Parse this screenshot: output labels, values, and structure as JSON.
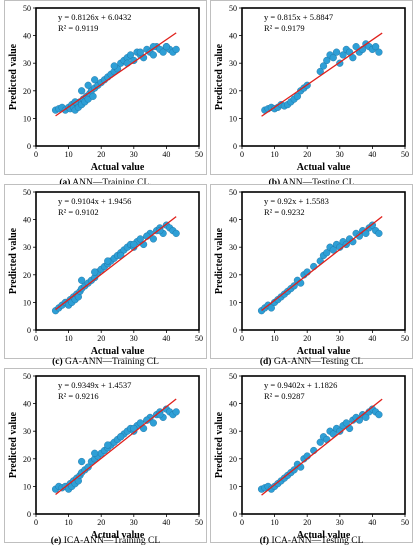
{
  "chart_data": [
    {
      "type": "scatter",
      "panel_label": "(a)",
      "caption": "ANN—Training CL.",
      "equation": "y = 0.8126x + 6.0432",
      "r2": "R² = 0.9119",
      "xlabel": "Actual value",
      "ylabel": "Predicted value",
      "xlim": [
        0,
        50
      ],
      "ylim": [
        0,
        50
      ],
      "xticks": [
        "0",
        "10",
        "20",
        "30",
        "40",
        "50"
      ],
      "yticks": [
        "0",
        "10",
        "20",
        "30",
        "40",
        "50"
      ],
      "trendline": {
        "slope": 0.8126,
        "intercept": 6.0432,
        "x_range": [
          6,
          43
        ],
        "color": "#e0201b"
      },
      "marker_color": "#2e9fd6",
      "grid": false,
      "x": [
        6,
        7,
        8,
        9,
        10,
        10.5,
        11,
        11.5,
        12,
        12.5,
        13,
        13.5,
        14,
        14.5,
        15,
        15.5,
        16,
        16.5,
        17,
        17.5,
        18,
        19,
        20,
        21,
        22,
        23,
        24,
        25,
        26,
        27,
        28,
        29,
        30,
        31,
        32,
        33,
        34,
        35,
        36,
        37,
        38,
        39,
        40,
        41,
        42,
        43,
        12,
        14,
        16,
        18,
        24,
        28,
        32,
        36,
        40
      ],
      "y": [
        13,
        13.5,
        14,
        13,
        14,
        13.5,
        15,
        14,
        13,
        15.5,
        14,
        16,
        15,
        17,
        16,
        18,
        17,
        19,
        20,
        18,
        21,
        22,
        23,
        24,
        25,
        26,
        27,
        28,
        30,
        31,
        32,
        33,
        31,
        34,
        33,
        32,
        35,
        34,
        33,
        36,
        35,
        34,
        36,
        35,
        34,
        35,
        16,
        20,
        22,
        24,
        29,
        30,
        34,
        36,
        36
      ]
    },
    {
      "type": "scatter",
      "panel_label": "(b)",
      "caption": "ANN—Testing CL",
      "equation": "y = 0.815x + 5.8847",
      "r2": "R² = 0.9179",
      "xlabel": "Actual value",
      "ylabel": "Predicted value",
      "xlim": [
        0,
        50
      ],
      "ylim": [
        0,
        50
      ],
      "xticks": [
        "0",
        "10",
        "20",
        "30",
        "40",
        "50"
      ],
      "yticks": [
        "0",
        "10",
        "20",
        "30",
        "40",
        "50"
      ],
      "trendline": {
        "slope": 0.815,
        "intercept": 5.8847,
        "x_range": [
          6,
          43
        ],
        "color": "#e0201b"
      },
      "marker_color": "#2e9fd6",
      "grid": false,
      "x": [
        7,
        8,
        9,
        10,
        11,
        12,
        13,
        14,
        15,
        16,
        17,
        18,
        19,
        20,
        24,
        25,
        26,
        27,
        28,
        29,
        30,
        31,
        32,
        33,
        34,
        35,
        36,
        37,
        38,
        39,
        40,
        41,
        42
      ],
      "y": [
        13,
        13.5,
        14,
        13.5,
        14,
        15,
        14.5,
        15,
        16,
        17,
        18,
        20,
        21,
        22,
        27,
        29,
        31,
        33,
        32,
        34,
        30,
        33,
        35,
        34,
        32,
        36,
        34,
        35,
        37,
        36,
        35,
        36,
        34
      ]
    },
    {
      "type": "scatter",
      "panel_label": "(c)",
      "caption": "GA-ANN—Training CL",
      "equation": "y = 0.9104x + 1.9456",
      "r2": "R² = 0.9102",
      "xlabel": "Actual value",
      "ylabel": "Predicted value",
      "xlim": [
        0,
        50
      ],
      "ylim": [
        0,
        50
      ],
      "xticks": [
        "0",
        "10",
        "20",
        "30",
        "40",
        "50"
      ],
      "yticks": [
        "0",
        "10",
        "20",
        "30",
        "40",
        "50"
      ],
      "trendline": {
        "slope": 0.9104,
        "intercept": 1.9456,
        "x_range": [
          6,
          43
        ],
        "color": "#e0201b"
      },
      "marker_color": "#2e9fd6",
      "grid": false,
      "x": [
        6,
        7,
        8,
        9,
        10,
        10.5,
        11,
        11.5,
        12,
        12.5,
        13,
        13.5,
        14,
        15,
        16,
        17,
        18,
        19,
        20,
        21,
        22,
        23,
        24,
        25,
        26,
        27,
        28,
        29,
        30,
        31,
        32,
        33,
        34,
        35,
        36,
        37,
        38,
        39,
        40,
        41,
        42,
        43,
        14,
        18,
        22,
        26,
        30,
        34,
        38
      ],
      "y": [
        7,
        8,
        9,
        10,
        9,
        11,
        10,
        12,
        11,
        13,
        12,
        14,
        15,
        16,
        17,
        18,
        19,
        21,
        22,
        23,
        24,
        25,
        26,
        27,
        28,
        29,
        30,
        31,
        30,
        32,
        33,
        31,
        34,
        35,
        33,
        36,
        37,
        35,
        38,
        37,
        36,
        35,
        18,
        21,
        25,
        27,
        31,
        34,
        36
      ]
    },
    {
      "type": "scatter",
      "panel_label": "(d)",
      "caption": "GA-ANN—Testing CL",
      "equation": "y = 0.92x + 1.5583",
      "r2": "R² = 0.9232",
      "xlabel": "Actual value",
      "ylabel": "Predicted value",
      "xlim": [
        0,
        50
      ],
      "ylim": [
        0,
        50
      ],
      "xticks": [
        "0",
        "10",
        "20",
        "30",
        "40",
        "50"
      ],
      "yticks": [
        "0",
        "10",
        "20",
        "30",
        "40",
        "50"
      ],
      "trendline": {
        "slope": 0.92,
        "intercept": 1.5583,
        "x_range": [
          6,
          43
        ],
        "color": "#e0201b"
      },
      "marker_color": "#2e9fd6",
      "grid": false,
      "x": [
        6,
        7,
        8,
        9,
        10,
        11,
        12,
        13,
        14,
        15,
        16,
        17,
        18,
        19,
        20,
        22,
        24,
        25,
        26,
        27,
        28,
        29,
        30,
        31,
        32,
        33,
        34,
        35,
        36,
        37,
        38,
        39,
        40,
        41,
        42
      ],
      "y": [
        7,
        8,
        9,
        8,
        10,
        11,
        12,
        13,
        14,
        15,
        16,
        18,
        17,
        20,
        21,
        23,
        25,
        27,
        28,
        30,
        29,
        31,
        30,
        32,
        31,
        33,
        32,
        35,
        34,
        36,
        35,
        37,
        38,
        36,
        35
      ]
    },
    {
      "type": "scatter",
      "panel_label": "(e)",
      "caption": "ICA-ANN—Training CL",
      "equation": "y = 0.9349x + 1.4537",
      "r2": "R² = 0.9216",
      "xlabel": "Actual value",
      "ylabel": "Predicted value",
      "xlim": [
        0,
        50
      ],
      "ylim": [
        0,
        50
      ],
      "xticks": [
        "0",
        "10",
        "20",
        "30",
        "40",
        "50"
      ],
      "yticks": [
        "0",
        "10",
        "20",
        "30",
        "40",
        "50"
      ],
      "trendline": {
        "slope": 0.9349,
        "intercept": 1.4537,
        "x_range": [
          6,
          43
        ],
        "color": "#e0201b"
      },
      "marker_color": "#2e9fd6",
      "grid": false,
      "x": [
        6,
        7,
        8,
        9,
        10,
        10.5,
        11,
        11.5,
        12,
        12.5,
        13,
        13.5,
        14,
        15,
        16,
        17,
        18,
        19,
        20,
        21,
        22,
        23,
        24,
        25,
        26,
        27,
        28,
        29,
        30,
        31,
        32,
        33,
        34,
        35,
        36,
        37,
        38,
        39,
        40,
        41,
        42,
        43,
        14,
        18,
        22,
        26,
        30,
        34,
        38
      ],
      "y": [
        9,
        10,
        9.5,
        10,
        9,
        11,
        10,
        12,
        11,
        13,
        12,
        14,
        15,
        16,
        17,
        19,
        20,
        21,
        22,
        23,
        24,
        25,
        26,
        27,
        28,
        29,
        30,
        31,
        30,
        32,
        33,
        31,
        34,
        35,
        33,
        36,
        37,
        35,
        38,
        37,
        36,
        37,
        19,
        22,
        25,
        28,
        31,
        34,
        36
      ]
    },
    {
      "type": "scatter",
      "panel_label": "(f)",
      "caption": "ICA-ANN—Testing CL",
      "equation": "y = 0.9402x + 1.1826",
      "r2": "R² = 0.9287",
      "xlabel": "Actual value",
      "ylabel": "Predicted value",
      "xlim": [
        0,
        50
      ],
      "ylim": [
        0,
        50
      ],
      "xticks": [
        "0",
        "10",
        "20",
        "30",
        "40",
        "50"
      ],
      "yticks": [
        "0",
        "10",
        "20",
        "30",
        "40",
        "50"
      ],
      "trendline": {
        "slope": 0.9402,
        "intercept": 1.1826,
        "x_range": [
          6,
          43
        ],
        "color": "#e0201b"
      },
      "marker_color": "#2e9fd6",
      "grid": false,
      "x": [
        6,
        7,
        8,
        9,
        10,
        11,
        12,
        13,
        14,
        15,
        16,
        17,
        18,
        19,
        20,
        22,
        24,
        25,
        26,
        27,
        28,
        29,
        30,
        31,
        32,
        33,
        34,
        35,
        36,
        37,
        38,
        39,
        40,
        41,
        42
      ],
      "y": [
        9,
        9.5,
        10,
        9,
        10,
        11,
        12,
        13,
        14,
        15,
        16,
        18,
        17,
        20,
        21,
        23,
        26,
        28,
        27,
        30,
        29,
        31,
        30,
        32,
        33,
        31,
        34,
        35,
        34,
        36,
        35,
        37,
        38,
        37,
        36
      ]
    }
  ]
}
